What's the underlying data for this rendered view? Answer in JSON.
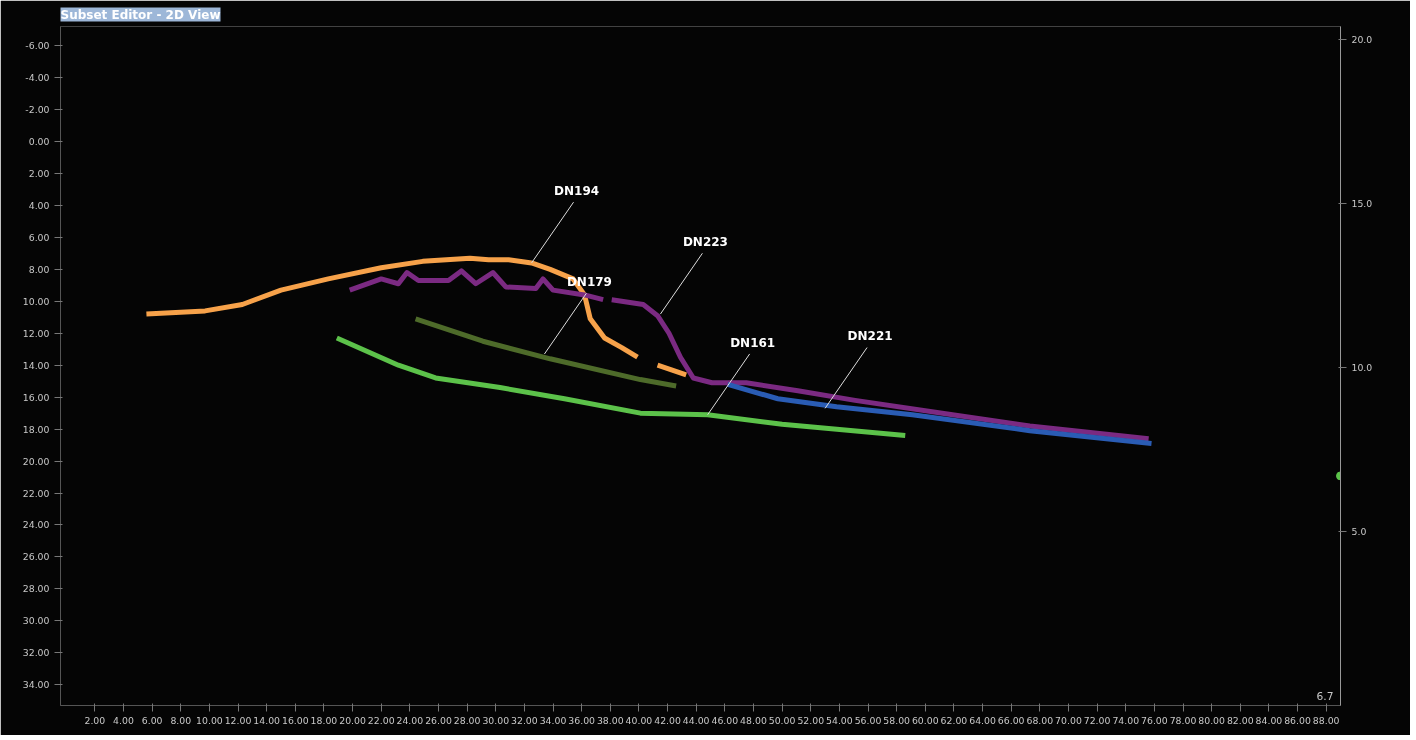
{
  "chart_data": {
    "type": "line",
    "title": "Subset Editor - 2D View",
    "xlim": [
      -0.4,
      89.0
    ],
    "ylim": [
      35.3,
      -7.2
    ],
    "y2lim": [
      -0.3,
      20.4
    ],
    "xticks": [
      {
        "value": 2,
        "label": "2.00"
      },
      {
        "value": 4,
        "label": "4.00"
      },
      {
        "value": 6,
        "label": "6.00"
      },
      {
        "value": 8,
        "label": "8.00"
      },
      {
        "value": 10,
        "label": "10.00"
      },
      {
        "value": 12,
        "label": "12.00"
      },
      {
        "value": 14,
        "label": "14.00"
      },
      {
        "value": 16,
        "label": "16.00"
      },
      {
        "value": 18,
        "label": "18.00"
      },
      {
        "value": 20,
        "label": "20.00"
      },
      {
        "value": 22,
        "label": "22.00"
      },
      {
        "value": 24,
        "label": "24.00"
      },
      {
        "value": 26,
        "label": "26.00"
      },
      {
        "value": 28,
        "label": "28.00"
      },
      {
        "value": 30,
        "label": "30.00"
      },
      {
        "value": 32,
        "label": "32.00"
      },
      {
        "value": 34,
        "label": "34.00"
      },
      {
        "value": 36,
        "label": "36.00"
      },
      {
        "value": 38,
        "label": "38.00"
      },
      {
        "value": 40,
        "label": "40.00"
      },
      {
        "value": 42,
        "label": "42.00"
      },
      {
        "value": 44,
        "label": "44.00"
      },
      {
        "value": 46,
        "label": "46.00"
      },
      {
        "value": 48,
        "label": "48.00"
      },
      {
        "value": 50,
        "label": "50.00"
      },
      {
        "value": 52,
        "label": "52.00"
      },
      {
        "value": 54,
        "label": "54.00"
      },
      {
        "value": 56,
        "label": "56.00"
      },
      {
        "value": 58,
        "label": "58.00"
      },
      {
        "value": 60,
        "label": "60.00"
      },
      {
        "value": 62,
        "label": "62.00"
      },
      {
        "value": 64,
        "label": "64.00"
      },
      {
        "value": 66,
        "label": "66.00"
      },
      {
        "value": 68,
        "label": "68.00"
      },
      {
        "value": 70,
        "label": "70.00"
      },
      {
        "value": 72,
        "label": "72.00"
      },
      {
        "value": 74,
        "label": "74.00"
      },
      {
        "value": 76,
        "label": "76.00"
      },
      {
        "value": 78,
        "label": "78.00"
      },
      {
        "value": 80,
        "label": "80.00"
      },
      {
        "value": 82,
        "label": "82.00"
      },
      {
        "value": 84,
        "label": "84.00"
      },
      {
        "value": 86,
        "label": "86.00"
      },
      {
        "value": 88,
        "label": "88.00"
      }
    ],
    "yticks": [
      {
        "value": -6,
        "label": "-6.00"
      },
      {
        "value": -4,
        "label": "-4.00"
      },
      {
        "value": -2,
        "label": "-2.00"
      },
      {
        "value": 0,
        "label": "0.00"
      },
      {
        "value": 2,
        "label": "2.00"
      },
      {
        "value": 4,
        "label": "4.00"
      },
      {
        "value": 6,
        "label": "6.00"
      },
      {
        "value": 8,
        "label": "8.00"
      },
      {
        "value": 10,
        "label": "10.00"
      },
      {
        "value": 12,
        "label": "12.00"
      },
      {
        "value": 14,
        "label": "14.00"
      },
      {
        "value": 16,
        "label": "16.00"
      },
      {
        "value": 18,
        "label": "18.00"
      },
      {
        "value": 20,
        "label": "20.00"
      },
      {
        "value": 22,
        "label": "22.00"
      },
      {
        "value": 24,
        "label": "24.00"
      },
      {
        "value": 26,
        "label": "26.00"
      },
      {
        "value": 28,
        "label": "28.00"
      },
      {
        "value": 30,
        "label": "30.00"
      },
      {
        "value": 32,
        "label": "32.00"
      },
      {
        "value": 34,
        "label": "34.00"
      }
    ],
    "y2ticks": [
      {
        "value": 5,
        "label": "5.0"
      },
      {
        "value": 10,
        "label": "10.0"
      },
      {
        "value": 15,
        "label": "15.0"
      },
      {
        "value": 20,
        "label": "20.0"
      }
    ],
    "grid": false,
    "marker": "none",
    "line_style": "solid",
    "series": [
      {
        "color": "#f7a24a",
        "x": [
          5.6,
          9.7,
          12.3,
          15.0,
          18.3,
          22.0,
          24.9,
          28.2,
          29.5,
          30.9,
          32.5,
          33.8,
          35.4,
          36.2,
          36.6,
          37.6,
          38.8,
          39.9,
          null,
          41.3,
          43.3
        ],
        "values": [
          10.8,
          10.6,
          10.2,
          9.3,
          8.6,
          7.9,
          7.5,
          7.3,
          7.4,
          7.4,
          7.6,
          8.0,
          8.6,
          9.6,
          11.1,
          12.3,
          12.9,
          13.5,
          null,
          14.0,
          14.6
        ]
      },
      {
        "color": "#7b2a82",
        "x": [
          19.8,
          22.0,
          23.2,
          23.8,
          24.6,
          26.7,
          27.6,
          28.6,
          29.8,
          30.7,
          32.8,
          33.3,
          34.0,
          36.2,
          37.5,
          null,
          38.1,
          40.3,
          41.3,
          42.1,
          42.9,
          43.8,
          45.1,
          47.5,
          51.1,
          55.1,
          61.9,
          67.3,
          75.6
        ],
        "values": [
          9.3,
          8.6,
          8.9,
          8.2,
          8.7,
          8.7,
          8.1,
          8.9,
          8.2,
          9.1,
          9.2,
          8.6,
          9.3,
          9.6,
          9.9,
          null,
          9.9,
          10.2,
          10.9,
          12.0,
          13.5,
          14.8,
          15.1,
          15.1,
          15.6,
          16.2,
          17.1,
          17.8,
          18.6
        ]
      },
      {
        "color": "#2a5cb4",
        "x": [
          46.2,
          49.7,
          53.8,
          59.1,
          67.3,
          75.8
        ],
        "values": [
          15.2,
          16.1,
          16.6,
          17.1,
          18.1,
          18.9
        ]
      },
      {
        "color": "#4e6b2a",
        "x": [
          24.4,
          29.1,
          33.8,
          40.1,
          42.6
        ],
        "values": [
          11.1,
          12.5,
          13.6,
          14.9,
          15.3
        ]
      },
      {
        "color": "#5cc24a",
        "x": [
          18.9,
          23.2,
          25.8,
          30.3,
          34.8,
          40.1,
          44.8,
          50.0,
          58.6
        ],
        "values": [
          12.3,
          14.0,
          14.8,
          15.4,
          16.1,
          17.0,
          17.1,
          17.7,
          18.4
        ]
      },
      {
        "type": "scatter",
        "axis": "y2",
        "marker": "circle",
        "color": "#5cc24a",
        "x": [
          89.0
        ],
        "values": [
          6.7
        ]
      }
    ],
    "annotations": [
      {
        "text": "DN194",
        "x": 32.5,
        "y": 7.6
      },
      {
        "text": "DN179",
        "x": 33.4,
        "y": 13.3
      },
      {
        "text": "DN223",
        "x": 41.5,
        "y": 10.8
      },
      {
        "text": "DN161",
        "x": 44.8,
        "y": 17.1
      },
      {
        "text": "DN221",
        "x": 53.0,
        "y": 16.7
      },
      "6.7"
    ]
  }
}
